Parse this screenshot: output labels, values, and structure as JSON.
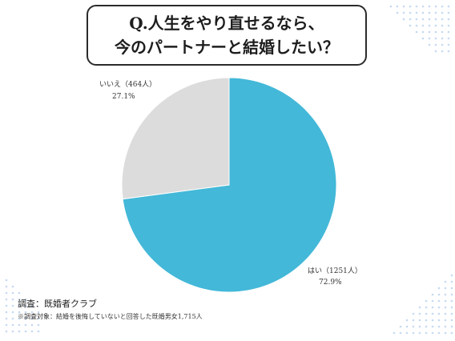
{
  "title": {
    "line1": "Q.人生をやり直せるなら、",
    "line2": "今のパートナーと結婚したい？"
  },
  "chart_data": {
    "type": "pie",
    "slices": [
      {
        "label": "はい（1251人）",
        "percent_label": "72.9%",
        "count": 1251,
        "percent": 72.9,
        "color": "#43b8d8"
      },
      {
        "label": "いいえ（464人）",
        "percent_label": "27.1%",
        "count": 464,
        "percent": 27.1,
        "color": "#dcdcdc"
      }
    ],
    "total": 1715
  },
  "footer": {
    "source": "調査：既婚者クラブ",
    "note": "※調査対象：結婚を後悔していないと回答した既婚男女1,715人"
  },
  "colors": {
    "decor_dots": "#c6d9f1",
    "title_border": "#2b2b2b"
  }
}
